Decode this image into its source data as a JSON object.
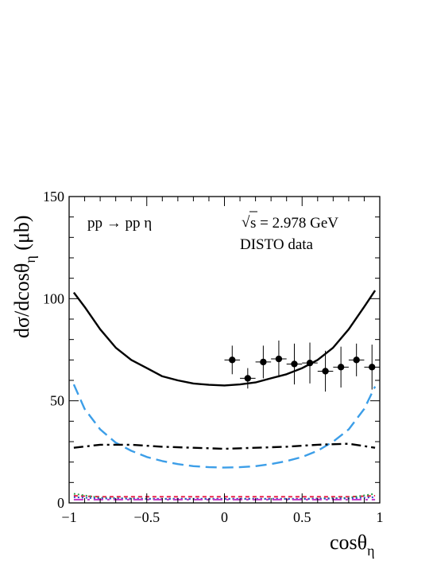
{
  "chart_data": {
    "type": "line",
    "reaction_label": "pp → pp η",
    "energy_sqrt_symbol": "√",
    "energy_label": "s = 2.978 GeV",
    "dataset_label": "DISTO data",
    "xlabel": {
      "main": "cosθ",
      "sub": "η"
    },
    "ylabel": {
      "pre": "dσ/dcosθ",
      "sub": "η",
      "post": " (μb)"
    },
    "xlim": [
      -1,
      1
    ],
    "ylim": [
      0,
      150
    ],
    "x_ticks": [
      {
        "value": -1,
        "label": "−1"
      },
      {
        "value": -0.5,
        "label": "−0.5"
      },
      {
        "value": 0,
        "label": "0"
      },
      {
        "value": 0.5,
        "label": "0.5"
      },
      {
        "value": 1,
        "label": "1"
      }
    ],
    "y_ticks": [
      {
        "value": 0,
        "label": "0"
      },
      {
        "value": 50,
        "label": "50"
      },
      {
        "value": 100,
        "label": "100"
      },
      {
        "value": 150,
        "label": "150"
      }
    ],
    "series": [
      {
        "style": "solid",
        "color": "#000000",
        "x": [
          -0.97,
          -0.9,
          -0.8,
          -0.7,
          -0.6,
          -0.5,
          -0.4,
          -0.3,
          -0.2,
          -0.1,
          0.0,
          0.1,
          0.2,
          0.3,
          0.4,
          0.5,
          0.6,
          0.7,
          0.8,
          0.9,
          0.97
        ],
        "y": [
          103,
          96,
          85,
          76,
          70,
          66,
          62,
          60,
          58.5,
          57.8,
          57.5,
          58,
          59,
          61,
          63,
          66,
          70,
          76,
          85,
          96,
          104
        ]
      },
      {
        "style": "long-dash",
        "color": "#3c9ee8",
        "x": [
          -0.97,
          -0.9,
          -0.8,
          -0.7,
          -0.6,
          -0.5,
          -0.4,
          -0.3,
          -0.2,
          -0.1,
          0.0,
          0.1,
          0.2,
          0.3,
          0.4,
          0.5,
          0.6,
          0.7,
          0.8,
          0.9,
          0.97
        ],
        "y": [
          58,
          46,
          36,
          29.5,
          25.5,
          22.5,
          20.5,
          19,
          18,
          17.5,
          17.3,
          17.5,
          18,
          19,
          20.5,
          22.5,
          25.5,
          30,
          36,
          46,
          57
        ]
      },
      {
        "style": "dash-dot",
        "color": "#000000",
        "x": [
          -0.97,
          -0.8,
          -0.6,
          -0.4,
          -0.2,
          0.0,
          0.2,
          0.4,
          0.6,
          0.8,
          0.97
        ],
        "y": [
          27,
          28.5,
          28.5,
          27.5,
          27,
          26.5,
          27,
          27.5,
          28.5,
          29,
          27
        ]
      },
      {
        "style": "dashed",
        "color": "#e8234a",
        "x": [
          -0.97,
          -0.8,
          -0.5,
          0.0,
          0.5,
          0.8,
          0.97
        ],
        "y": [
          3.5,
          3,
          3,
          3,
          3,
          3,
          3.5
        ]
      },
      {
        "style": "dotted",
        "color": "#2aa24a",
        "x": [
          -0.97,
          -0.8,
          -0.5,
          0.0,
          0.5,
          0.8,
          0.97
        ],
        "y": [
          4.5,
          2.5,
          2,
          2,
          2,
          2.5,
          4.5
        ]
      },
      {
        "style": "dotted",
        "color": "#2b49c8",
        "x": [
          -0.97,
          -0.8,
          -0.5,
          0.0,
          0.5,
          0.8,
          0.97
        ],
        "y": [
          2.8,
          2.2,
          2,
          2,
          2,
          2.2,
          2.8
        ]
      },
      {
        "style": "dash-dot",
        "color": "#c236c8",
        "x": [
          -0.97,
          -0.8,
          -0.5,
          0.0,
          0.5,
          0.8,
          0.97
        ],
        "y": [
          1.6,
          1.6,
          1.6,
          1.6,
          1.6,
          1.6,
          1.6
        ]
      }
    ],
    "data_points": {
      "name": "DISTO data",
      "color": "#000000",
      "x": [
        0.05,
        0.15,
        0.25,
        0.35,
        0.45,
        0.55,
        0.65,
        0.75,
        0.85,
        0.95
      ],
      "y": [
        70,
        61,
        69,
        70.5,
        68,
        68.5,
        64.5,
        66.5,
        70,
        66.5
      ],
      "x_err": 0.05,
      "y_err": [
        7,
        5,
        8,
        9,
        10,
        10,
        10,
        10,
        8,
        11
      ]
    }
  }
}
